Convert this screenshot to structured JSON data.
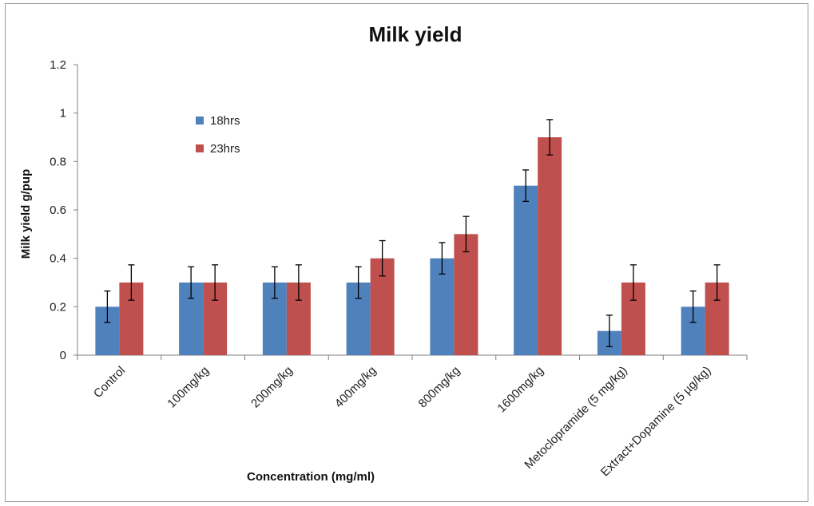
{
  "colors": {
    "series_18hrs": "#4f81bd",
    "series_23hrs": "#c0504d",
    "axis": "#7f7f7f",
    "error_bar": "#000000"
  },
  "chart_data": {
    "type": "bar",
    "title": "Milk yield",
    "xlabel": "Concentration (mg/ml)",
    "ylabel": "Milk yield g/pup",
    "ylim": [
      0,
      1.2
    ],
    "yticks": [
      "0",
      "0.2",
      "0.4",
      "0.6",
      "0.8",
      "1",
      "1.2"
    ],
    "grid": false,
    "legend_position": "top-left",
    "categories": [
      "Control",
      "100mg/kg",
      "200mg/kg",
      "400mg/kg",
      "800mg/kg",
      "1600mg/kg",
      "Metoclopramide (5 mg/kg)",
      "Extract+Dopamine (5 µg/kg)"
    ],
    "series": [
      {
        "name": "18hrs",
        "values": [
          0.2,
          0.3,
          0.3,
          0.3,
          0.4,
          0.7,
          0.1,
          0.2
        ],
        "errors": [
          0.065,
          0.065,
          0.065,
          0.065,
          0.065,
          0.065,
          0.065,
          0.065
        ]
      },
      {
        "name": "23hrs",
        "values": [
          0.3,
          0.3,
          0.3,
          0.4,
          0.5,
          0.9,
          0.3,
          0.3
        ],
        "errors": [
          0.073,
          0.073,
          0.073,
          0.073,
          0.073,
          0.073,
          0.073,
          0.073
        ]
      }
    ]
  }
}
